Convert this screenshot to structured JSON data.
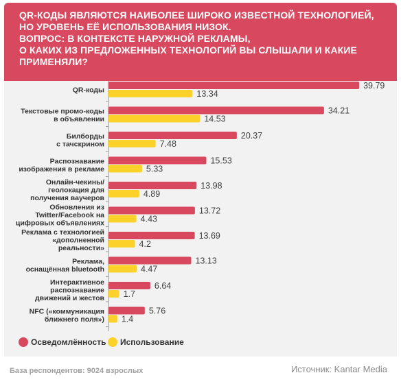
{
  "header": {
    "lines": [
      "QR-КОДЫ ЯВЛЯЮТСЯ НАИБОЛЕЕ ШИРОКО ИЗВЕСТНОЙ ТЕХНОЛОГИЕЙ,",
      "НО УРОВЕНЬ ЕЁ ИСПОЛЬЗОВАНИЯ НИЗОК.",
      "ВОПРОС: В КОНТЕКСТЕ НАРУЖНОЙ РЕКЛАМЫ,",
      "О КАКИХ ИЗ ПРЕДЛОЖЕННЫХ ТЕХНОЛОГИЙ ВЫ СЛЫШАЛИ И КАКИЕ ПРИМЕНЯЛИ?"
    ]
  },
  "colors": {
    "header_bg": "#d8485f",
    "awareness": "#d8485f",
    "usage": "#fcd12a",
    "panel_bg": "#f2f2f2"
  },
  "chart_data": {
    "type": "bar",
    "orientation": "horizontal",
    "categories": [
      [
        "QR-коды"
      ],
      [
        "Текстовые промо-коды",
        "в объявлении"
      ],
      [
        "Билборды",
        "с тачскрином"
      ],
      [
        "Распознавание",
        "изображения в рекламе"
      ],
      [
        "Онлайн-чекины/",
        "геолокация для",
        "получения ваучеров"
      ],
      [
        "Обновления из",
        "Twitter/Facebook на",
        "цифровых объявлениях"
      ],
      [
        "Реклама с технологией",
        "«дополненной",
        "реальности»"
      ],
      [
        "Реклама,",
        "оснащённая bluetooth"
      ],
      [
        "Интерактивное",
        "распознавание",
        "движений и жестов"
      ],
      [
        "NFC («коммуникация",
        "ближнего поля»)"
      ]
    ],
    "series": [
      {
        "name": "Осведомлённость",
        "color": "#d8485f",
        "values": [
          39.79,
          34.21,
          20.37,
          15.53,
          13.98,
          13.72,
          13.69,
          13.13,
          6.64,
          5.76
        ]
      },
      {
        "name": "Использование",
        "color": "#fcd12a",
        "values": [
          13.34,
          14.53,
          7.48,
          5.33,
          4.89,
          4.43,
          4.2,
          4.47,
          1.7,
          1.4
        ]
      }
    ],
    "xlim": [
      0,
      40
    ],
    "grid": false,
    "legend_position": "bottom-left"
  },
  "footer": {
    "base": "База респондентов: 9024 взрослых",
    "source": "Источник: Kantar Media"
  }
}
